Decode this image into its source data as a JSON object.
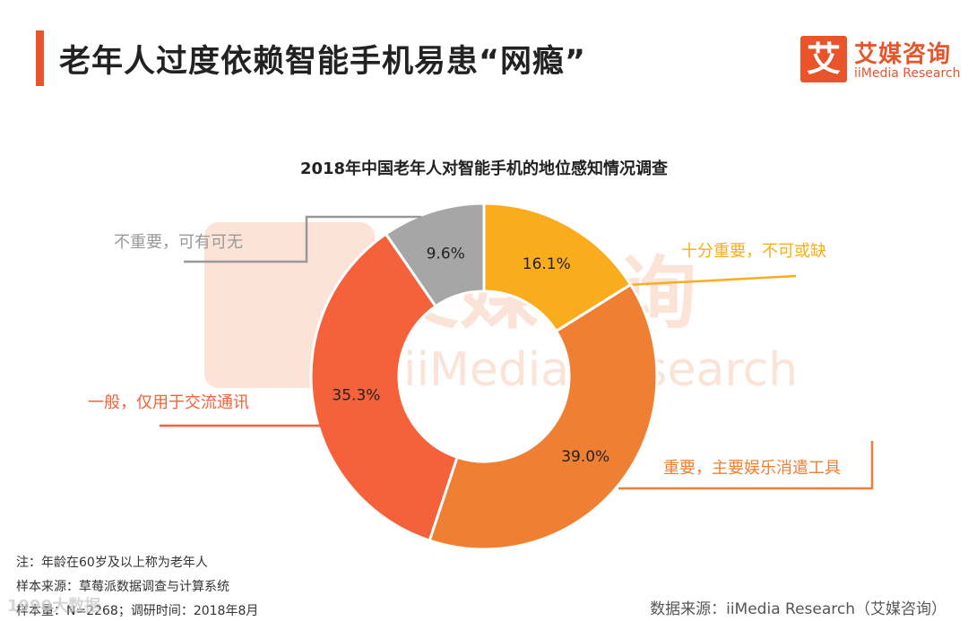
{
  "header": {
    "title": "老年人过度依赖智能手机易患“网瘾”",
    "logo_mark": "艾",
    "logo_cn": "艾媒咨询",
    "logo_en": "iiMedia Research"
  },
  "watermark": {
    "cn": "艾媒咨询",
    "en": "iiMedia Research",
    "corner": "1990大数据"
  },
  "chart_data": {
    "type": "pie",
    "variant": "donut",
    "title": "2018年中国老年人对智能手机的地位感知情况调查",
    "slices": [
      {
        "label": "十分重要，不可或缺",
        "value": 16.1,
        "display": "16.1%",
        "color": "#f9ad1d"
      },
      {
        "label": "重要，主要娱乐消遣工具",
        "value": 39.0,
        "display": "39.0%",
        "color": "#ee7f33"
      },
      {
        "label": "一般，仅用于交流通讯",
        "value": 35.3,
        "display": "35.3%",
        "color": "#f4613a"
      },
      {
        "label": "不重要，可有可无",
        "value": 9.6,
        "display": "9.6%",
        "color": "#a6a6a6"
      }
    ],
    "label_colors": [
      "#f9ad1d",
      "#ee7f33",
      "#f4613a",
      "#999999"
    ]
  },
  "footer": {
    "note": "注：年龄在60岁及以上称为老年人",
    "sample_source": "样本来源：草莓派数据调查与计算系统",
    "sample_size": "样本量：N=2268；调研时间：2018年8月",
    "data_source": "数据来源：iiMedia Research（艾媒咨询）"
  }
}
